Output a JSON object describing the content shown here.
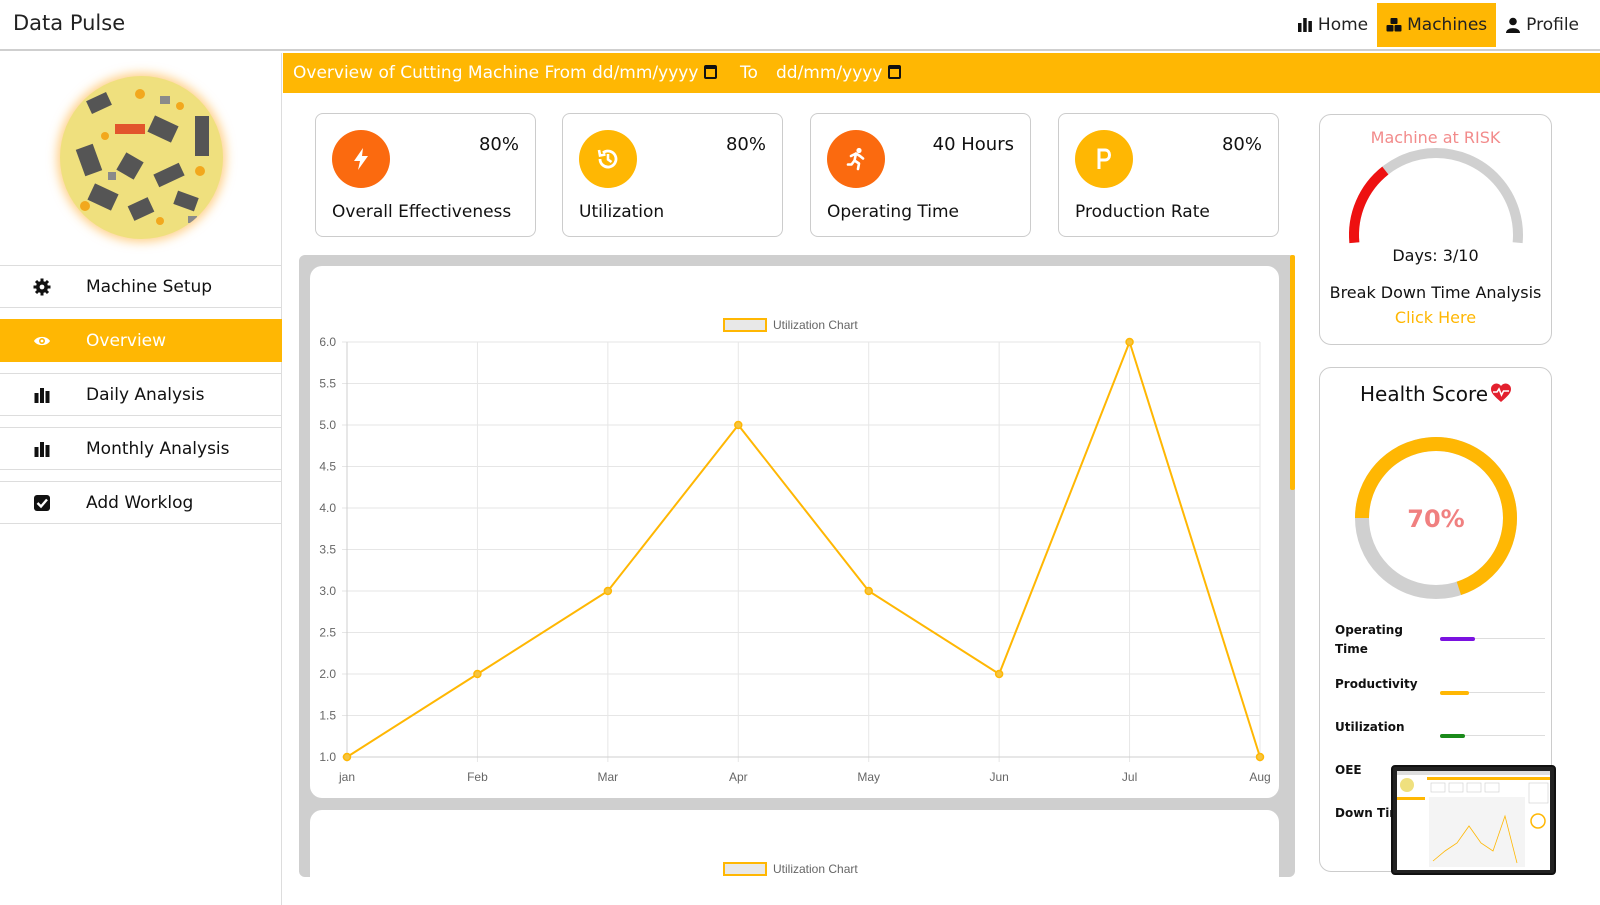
{
  "app": {
    "title": "Data Pulse"
  },
  "topnav": [
    {
      "label": "Home",
      "icon": "bar-chart-icon"
    },
    {
      "label": "Machines",
      "icon": "cubes-icon",
      "active": true
    },
    {
      "label": "Profile",
      "icon": "user-icon"
    }
  ],
  "sidebar": {
    "items": [
      {
        "label": "Machine Setup",
        "icon": "gear-icon"
      },
      {
        "label": "Overview",
        "icon": "eye-icon",
        "active": true
      },
      {
        "label": "Daily Analysis",
        "icon": "bar-chart-icon"
      },
      {
        "label": "Monthly Analysis",
        "icon": "bar-chart-icon"
      },
      {
        "label": "Add Worklog",
        "icon": "checkbox-icon"
      }
    ]
  },
  "header": {
    "prefix": "Overview of Cutting Machine From",
    "from_placeholder": "dd/mm/yyyy",
    "to_label": "To",
    "to_placeholder": "dd/mm/yyyy"
  },
  "kpis": [
    {
      "label": "Overall Effectiveness",
      "value": "80%",
      "icon": "bolt-icon",
      "color": "#fb6a0f"
    },
    {
      "label": "Utilization",
      "value": "80%",
      "icon": "history-icon",
      "color": "#ffb703"
    },
    {
      "label": "Operating Time",
      "value": "40 Hours",
      "icon": "running-icon",
      "color": "#fb6a0f"
    },
    {
      "label": "Production Rate",
      "value": "80%",
      "icon": "letter-p-icon",
      "color": "#ffb703"
    }
  ],
  "risk": {
    "title": "Machine at RISK",
    "days_text": "Days: 3/10",
    "days": 3,
    "days_max": 10,
    "analysis": "Break Down Time Analysis",
    "link": "Click Here"
  },
  "health": {
    "title": "Health Score",
    "score_text": "70%",
    "score": 0.7,
    "metrics": [
      {
        "label": "Operating Time",
        "level": 0.33,
        "color": "#7a12e0"
      },
      {
        "label": "Productivity",
        "level": 0.28,
        "color": "#ffb703"
      },
      {
        "label": "Utilization",
        "level": 0.24,
        "color": "#1a8a1a"
      },
      {
        "label": "OEE",
        "level": 0,
        "color": "#888888"
      },
      {
        "label": "Down Time",
        "level": 0,
        "color": "#888888"
      }
    ]
  },
  "colors": {
    "accent": "#ffb703",
    "orange": "#fb6a0f",
    "risk_red": "#ee1111"
  },
  "chart_data": [
    {
      "type": "line",
      "legend": "Utilization Chart",
      "categories": [
        "jan",
        "Feb",
        "Mar",
        "Apr",
        "May",
        "Jun",
        "Jul",
        "Aug"
      ],
      "series": [
        {
          "name": "Utilization Chart",
          "values": [
            1,
            2,
            3,
            5,
            3,
            2,
            6,
            1
          ]
        }
      ],
      "ylim": [
        1,
        6
      ],
      "yticks": [
        "6.0",
        "5.5",
        "5.0",
        "4.5",
        "4.0",
        "3.5",
        "3.0",
        "2.5",
        "2.0",
        "1.5",
        "1.0"
      ],
      "grid": true,
      "legend_position": "top"
    },
    {
      "type": "line",
      "legend": "Utilization Chart"
    }
  ]
}
